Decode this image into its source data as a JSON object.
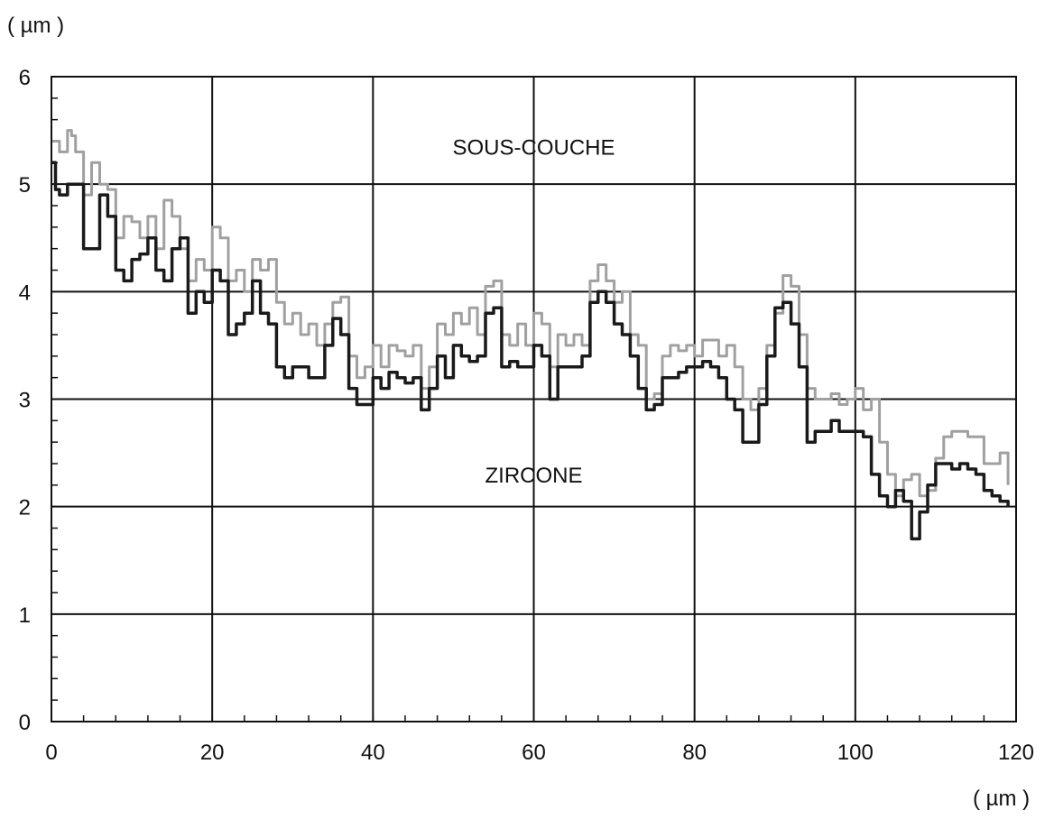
{
  "chart_data": {
    "type": "line",
    "title": "",
    "x_unit_label": "( µm )",
    "y_unit_label": "( µm )",
    "xlim": [
      0,
      120
    ],
    "ylim": [
      0,
      6
    ],
    "x_ticks": [
      0,
      20,
      40,
      60,
      80,
      100,
      120
    ],
    "y_ticks": [
      0,
      1,
      2,
      3,
      4,
      5,
      6
    ],
    "x_tick_labels": [
      "0",
      "20",
      "40",
      "60",
      "80",
      "100",
      "120"
    ],
    "y_tick_labels": [
      "0",
      "1",
      "2",
      "3",
      "4",
      "5",
      "6"
    ],
    "grid": true,
    "annotations": [
      {
        "text": "SOUS-COUCHE",
        "x": 60,
        "y": 5.35
      },
      {
        "text": "ZIRCONE",
        "x": 60,
        "y": 2.3
      }
    ],
    "series": [
      {
        "color": "#a0a0a0",
        "x": [
          0,
          1,
          2,
          2.5,
          3,
          4,
          5,
          6,
          7,
          8,
          9,
          10,
          11,
          12,
          13,
          14,
          15,
          16,
          17,
          18,
          19,
          20,
          21,
          22,
          23,
          24,
          25,
          26,
          27,
          28,
          29,
          30,
          31,
          32,
          33,
          34,
          35,
          36,
          37,
          38,
          39,
          40,
          41,
          42,
          43,
          44,
          45,
          46,
          47,
          48,
          49,
          50,
          51,
          52,
          53,
          54,
          55,
          56,
          57,
          58,
          59,
          60,
          61,
          62,
          63,
          64,
          65,
          66,
          67,
          68,
          69,
          70,
          71,
          72,
          73,
          74,
          75,
          76,
          77,
          78,
          79,
          80,
          81,
          82,
          83,
          84,
          85,
          86,
          87,
          88,
          89,
          90,
          91,
          92,
          93,
          94,
          95,
          96,
          97,
          98,
          99,
          100,
          101,
          102,
          103,
          104,
          105,
          106,
          107,
          108,
          109,
          110,
          111,
          112,
          114,
          116,
          117,
          118,
          119
        ],
        "y": [
          5.4,
          5.3,
          5.5,
          5.45,
          5.3,
          4.9,
          5.2,
          5.0,
          4.95,
          4.5,
          4.7,
          4.65,
          4.5,
          4.7,
          4.4,
          4.85,
          4.7,
          4.4,
          4.1,
          4.3,
          4.2,
          4.6,
          4.5,
          4.1,
          4.2,
          4.0,
          4.3,
          4.2,
          4.3,
          3.9,
          3.7,
          3.8,
          3.6,
          3.7,
          3.5,
          3.7,
          3.9,
          3.95,
          3.4,
          3.2,
          3.3,
          3.5,
          3.3,
          3.5,
          3.45,
          3.4,
          3.5,
          3.1,
          3.3,
          3.7,
          3.6,
          3.8,
          3.7,
          3.85,
          3.6,
          4.05,
          4.1,
          3.6,
          3.5,
          3.7,
          3.5,
          3.8,
          3.7,
          3.3,
          3.6,
          3.5,
          3.6,
          3.5,
          4.1,
          4.25,
          4.1,
          3.9,
          4.0,
          3.6,
          3.5,
          3.0,
          3.05,
          3.4,
          3.5,
          3.45,
          3.5,
          3.4,
          3.55,
          3.55,
          3.4,
          3.5,
          3.3,
          3.0,
          2.9,
          3.1,
          3.5,
          3.8,
          4.15,
          4.05,
          3.6,
          3.1,
          3.0,
          3.0,
          3.05,
          2.95,
          3.0,
          3.1,
          2.9,
          3.0,
          2.6,
          2.3,
          2.1,
          2.25,
          2.3,
          2.1,
          2.15,
          2.45,
          2.65,
          2.7,
          2.65,
          2.4,
          2.4,
          2.5,
          2.2
        ]
      },
      {
        "color": "#1a1a1a",
        "x": [
          0,
          0.5,
          1,
          2,
          3,
          4,
          5,
          6,
          7,
          8,
          9,
          10,
          11,
          12,
          13,
          14,
          15,
          16,
          17,
          18,
          19,
          20,
          21,
          22,
          23,
          24,
          25,
          26,
          27,
          28,
          29,
          30,
          31,
          32,
          33,
          34,
          35,
          36,
          37,
          38,
          39,
          40,
          41,
          42,
          43,
          44,
          45,
          46,
          47,
          48,
          49,
          50,
          51,
          52,
          53,
          54,
          55,
          56,
          57,
          58,
          59,
          60,
          61,
          62,
          63,
          64,
          65,
          66,
          67,
          68,
          69,
          70,
          71,
          72,
          73,
          74,
          75,
          76,
          77,
          78,
          79,
          80,
          81,
          82,
          83,
          84,
          85,
          86,
          87,
          88,
          89,
          90,
          91,
          92,
          93,
          94,
          95,
          96,
          97,
          98,
          99,
          100,
          101,
          102,
          103,
          104,
          105,
          106,
          107,
          108,
          109,
          110,
          112,
          113,
          114,
          115,
          116,
          117,
          118,
          119
        ],
        "y": [
          5.2,
          4.95,
          4.9,
          5.0,
          5.0,
          4.4,
          4.4,
          4.9,
          4.7,
          4.2,
          4.1,
          4.3,
          4.35,
          4.5,
          4.2,
          4.1,
          4.4,
          4.5,
          3.8,
          4.0,
          3.9,
          4.2,
          4.1,
          3.6,
          3.7,
          3.8,
          4.1,
          3.8,
          3.7,
          3.3,
          3.2,
          3.3,
          3.3,
          3.2,
          3.2,
          3.5,
          3.75,
          3.6,
          3.1,
          2.95,
          2.95,
          3.2,
          3.1,
          3.25,
          3.2,
          3.15,
          3.2,
          2.9,
          3.1,
          3.4,
          3.2,
          3.5,
          3.4,
          3.35,
          3.4,
          3.8,
          3.85,
          3.3,
          3.35,
          3.3,
          3.3,
          3.5,
          3.4,
          3.0,
          3.3,
          3.3,
          3.3,
          3.4,
          3.9,
          4.0,
          3.9,
          3.7,
          3.6,
          3.4,
          3.1,
          2.9,
          2.95,
          3.2,
          3.2,
          3.25,
          3.3,
          3.3,
          3.35,
          3.3,
          3.2,
          3.0,
          2.9,
          2.6,
          2.6,
          2.95,
          3.4,
          3.85,
          3.9,
          3.7,
          3.3,
          2.6,
          2.7,
          2.7,
          2.8,
          2.7,
          2.7,
          2.7,
          2.65,
          2.3,
          2.1,
          2.0,
          2.15,
          2.05,
          1.7,
          1.95,
          2.2,
          2.4,
          2.35,
          2.4,
          2.35,
          2.3,
          2.15,
          2.1,
          2.05,
          2.0
        ]
      }
    ]
  }
}
